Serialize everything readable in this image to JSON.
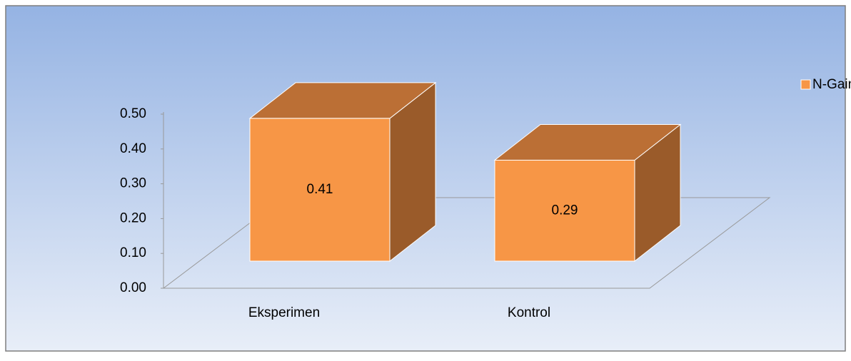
{
  "chart_data": {
    "type": "bar3d",
    "categories": [
      "Eksperimen",
      "Kontrol"
    ],
    "series": [
      {
        "name": "N-Gain",
        "color": "#f79646",
        "values": [
          0.41,
          0.29
        ]
      }
    ],
    "ylim": [
      0,
      0.5
    ],
    "yticks": [
      {
        "value": 0,
        "label": "0.00"
      },
      {
        "value": 0.1,
        "label": "0.10"
      },
      {
        "value": 0.2,
        "label": "0.20"
      },
      {
        "value": 0.3,
        "label": "0.30"
      },
      {
        "value": 0.4,
        "label": "0.40"
      },
      {
        "value": 0.5,
        "label": "0.50"
      }
    ],
    "legend": "right"
  }
}
